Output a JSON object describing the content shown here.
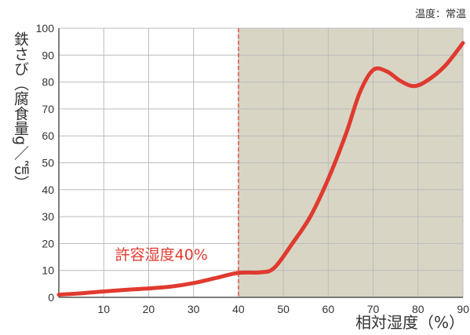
{
  "chart_data": {
    "type": "line",
    "note": "温度：常温",
    "xlabel": "相対湿度（%）",
    "ylabel": "鉄さび（腐食量g／㎠）",
    "xlim": [
      0,
      90
    ],
    "ylim": [
      0,
      100
    ],
    "x_ticks": [
      0,
      10,
      20,
      30,
      40,
      50,
      60,
      70,
      80,
      90
    ],
    "y_ticks": [
      0,
      10,
      20,
      30,
      40,
      50,
      60,
      70,
      80,
      90,
      100
    ],
    "x_tick_labels": [
      "",
      "10",
      "20",
      "30",
      "40",
      "50",
      "60",
      "70",
      "80",
      "90"
    ],
    "y_tick_labels": [
      "0",
      "10",
      "20",
      "30",
      "40",
      "50",
      "60",
      "70",
      "80",
      "90",
      "100"
    ],
    "grid": true,
    "threshold": {
      "x": 40,
      "label": "許容湿度40%"
    },
    "shaded_region": {
      "x_start": 40,
      "x_end": 90
    },
    "series": [
      {
        "x": [
          0,
          5,
          10,
          15,
          20,
          25,
          30,
          35,
          40,
          45,
          48,
          52,
          56,
          60,
          64,
          67,
          70,
          73,
          76,
          79,
          82,
          86,
          90
        ],
        "y": [
          1,
          1.5,
          2.2,
          2.8,
          3.3,
          4,
          5.3,
          7.2,
          9.1,
          9.3,
          11,
          20,
          30,
          44,
          61,
          76,
          84.5,
          84,
          80.5,
          78.5,
          80.5,
          86,
          94.5
        ]
      }
    ],
    "colors": {
      "line": "#e03a2f",
      "shade": "#d8d5c5",
      "threshold": "#e03a2f",
      "grid": "#bcbcbc",
      "axis": "#555555"
    }
  }
}
